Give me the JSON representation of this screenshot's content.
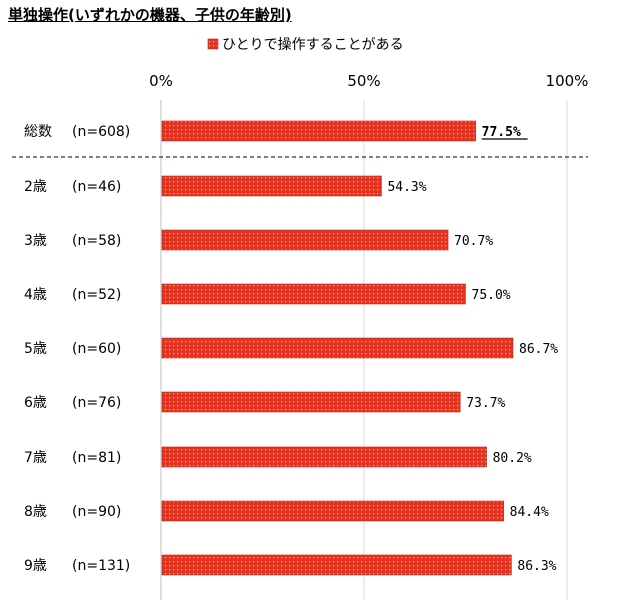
{
  "title": "単独操作(いずれかの機器、子供の年齢別)",
  "chart_data": {
    "type": "bar",
    "orientation": "horizontal",
    "series": [
      {
        "name": "ひとりで操作することがある",
        "color": "#e8321e",
        "values": [
          77.5,
          54.3,
          70.7,
          75.0,
          86.7,
          73.7,
          80.2,
          84.4,
          86.3
        ]
      }
    ],
    "categories": [
      {
        "age": "総数",
        "n": "(n=608)"
      },
      {
        "age": "2歳",
        "n": "(n=46)"
      },
      {
        "age": "3歳",
        "n": "(n=58)"
      },
      {
        "age": "4歳",
        "n": "(n=52)"
      },
      {
        "age": "5歳",
        "n": "(n=60)"
      },
      {
        "age": "6歳",
        "n": "(n=76)"
      },
      {
        "age": "7歳",
        "n": "(n=81)"
      },
      {
        "age": "8歳",
        "n": "(n=90)"
      },
      {
        "age": "9歳",
        "n": "(n=131)"
      }
    ],
    "value_labels": [
      "77.5%",
      "54.3%",
      "70.7%",
      "75.0%",
      "86.7%",
      "73.7%",
      "80.2%",
      "84.4%",
      "86.3%"
    ],
    "xlim": [
      0,
      100
    ],
    "xticks": [
      0,
      50,
      100
    ],
    "xtick_labels": [
      "0%",
      "50%",
      "100%"
    ],
    "legend_position": "top-center",
    "grid": true
  }
}
